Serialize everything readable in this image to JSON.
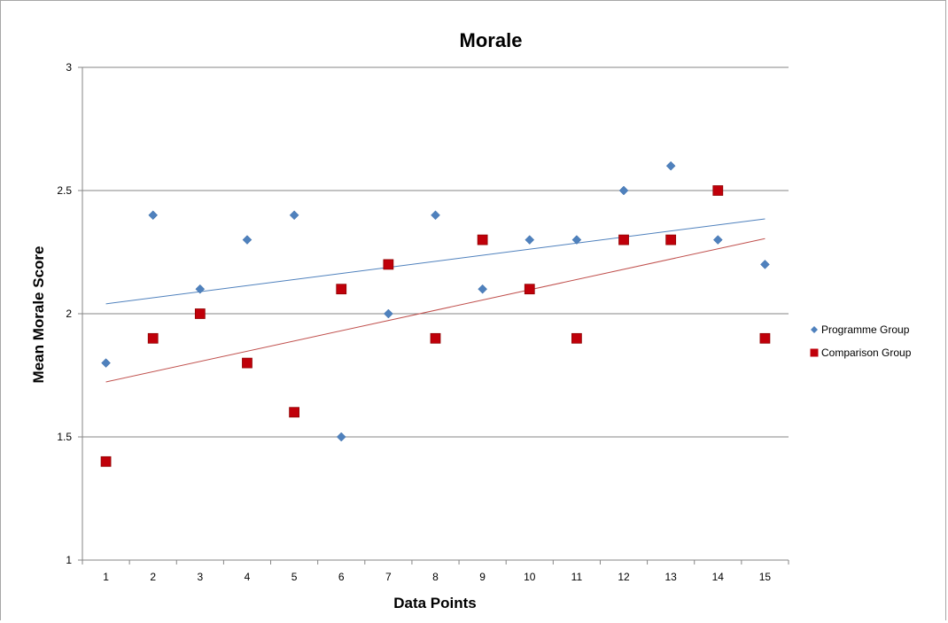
{
  "chart_data": {
    "type": "scatter",
    "title": "Morale",
    "xlabel": "Data Points",
    "ylabel": "Mean Morale Score",
    "x": [
      1,
      2,
      3,
      4,
      5,
      6,
      7,
      8,
      9,
      10,
      11,
      12,
      13,
      14,
      15
    ],
    "x_tick_labels": [
      "1",
      "2",
      "3",
      "4",
      "5",
      "6",
      "7",
      "8",
      "9",
      "10",
      "11",
      "12",
      "13",
      "14",
      "15"
    ],
    "ylim": [
      1,
      3
    ],
    "y_ticks": [
      1,
      1.5,
      2,
      2.5,
      3
    ],
    "y_tick_labels": [
      "1",
      "1.5",
      "2",
      "2.5",
      "3"
    ],
    "grid": "horizontal",
    "legend_position": "right",
    "series": [
      {
        "name": "Programme Group",
        "marker": "diamond",
        "color": "#4f81bd",
        "values": [
          1.8,
          2.4,
          2.1,
          2.3,
          2.4,
          1.5,
          2.0,
          2.4,
          2.1,
          2.3,
          2.3,
          2.5,
          2.6,
          2.3,
          2.2
        ],
        "trendline": {
          "type": "linear",
          "color": "#4f81bd",
          "start": 2.04,
          "end": 2.385
        }
      },
      {
        "name": "Comparison Group",
        "marker": "square",
        "color": "#c0000a",
        "values": [
          1.4,
          1.9,
          2.0,
          1.8,
          1.6,
          2.1,
          2.2,
          1.9,
          2.3,
          2.1,
          1.9,
          2.3,
          2.3,
          2.5,
          1.9
        ],
        "trendline": {
          "type": "linear",
          "color": "#c0504d",
          "start": 1.723,
          "end": 2.305
        }
      }
    ]
  }
}
